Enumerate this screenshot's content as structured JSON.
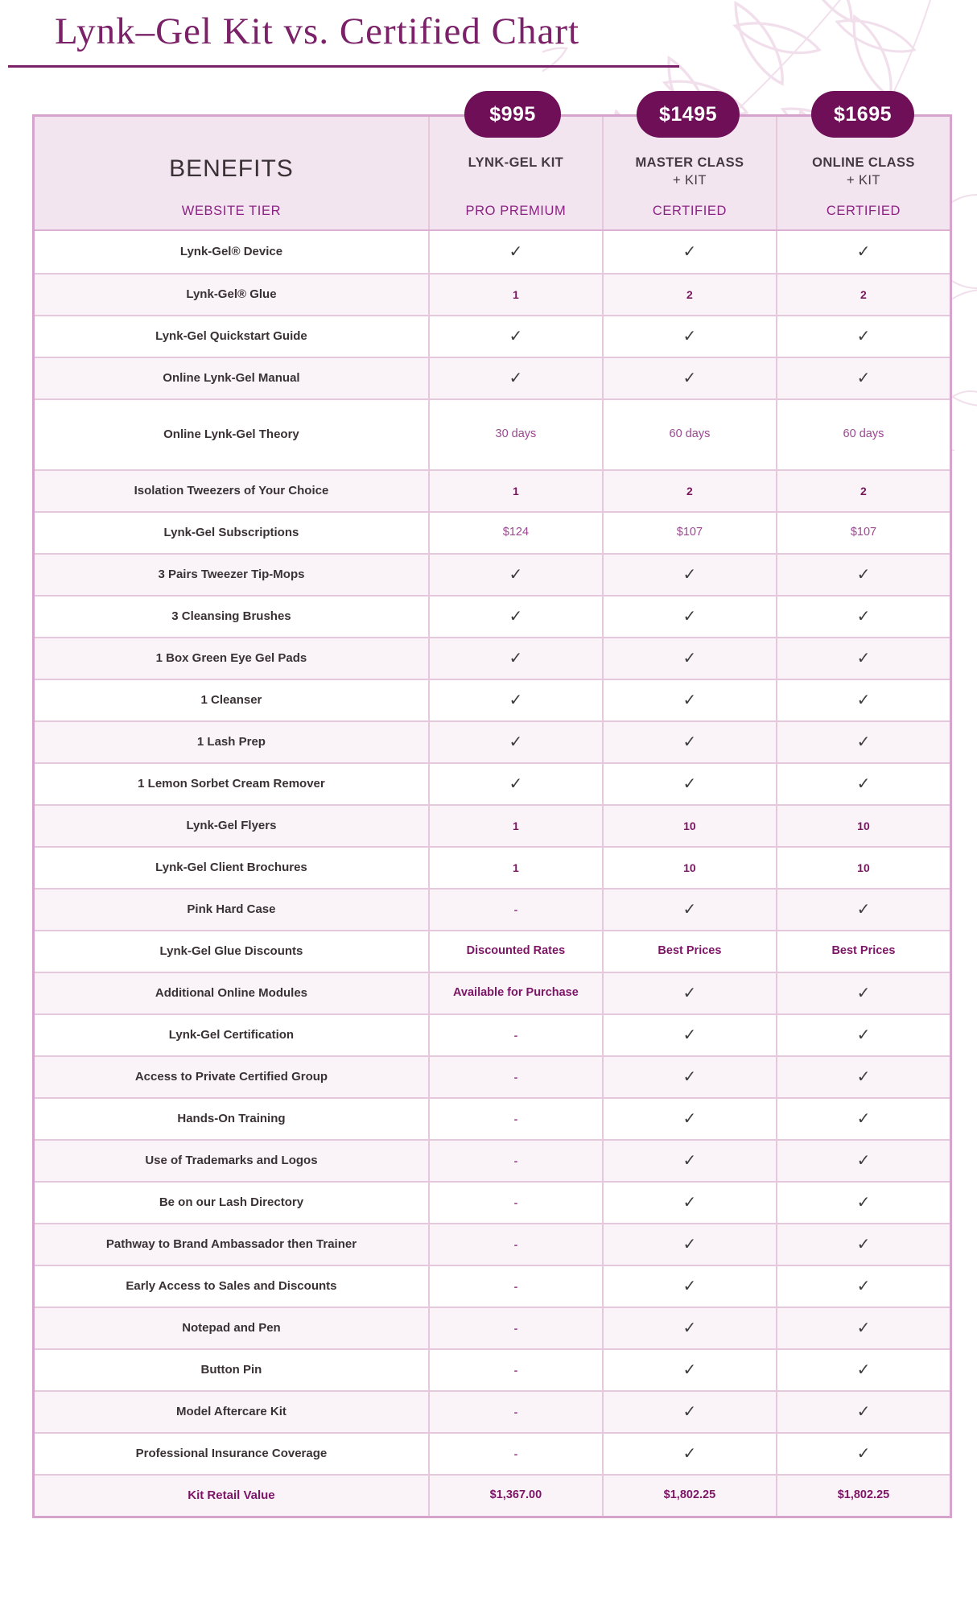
{
  "page": {
    "title": "Lynk–Gel Kit vs. Certified Chart"
  },
  "colors": {
    "title": "#7a2168",
    "badge": "#6e0f58",
    "headerBg": "#f3e5f0",
    "rowAlt": "#faf4f9",
    "borderOuter": "#d5a3cc",
    "borderInner": "#e6c8de",
    "dark": "#3a3134",
    "accent": "#7c1566",
    "accentSoft": "#9a4890",
    "countPurple": "#77175f",
    "leaf": "#f1dfec"
  },
  "icons": {
    "check": "✓",
    "dash": "-",
    "leaf_decoration": "line-art leaves, top right"
  },
  "chart_data": {
    "type": "table",
    "title": "Lynk–Gel Kit vs. Certified Chart",
    "columns": [
      {
        "header": "BENEFITS",
        "header2": "",
        "subheader": "WEBSITE TIER",
        "price": ""
      },
      {
        "header": "LYNK-GEL KIT",
        "header2": "",
        "subheader": "PRO PREMIUM",
        "price": "$995"
      },
      {
        "header": "MASTER CLASS",
        "header2": "+ KIT",
        "subheader": "CERTIFIED",
        "price": "$1495"
      },
      {
        "header": "ONLINE CLASS",
        "header2": "+ KIT",
        "subheader": "CERTIFIED",
        "price": "$1695"
      }
    ],
    "rows": [
      {
        "label": "Lynk-Gel® Device",
        "values": [
          "✓",
          "✓",
          "✓"
        ],
        "styles": [
          "check",
          "check",
          "check"
        ]
      },
      {
        "label": "Lynk-Gel® Glue",
        "values": [
          "1",
          "2",
          "2"
        ],
        "styles": [
          "count",
          "count",
          "count"
        ]
      },
      {
        "label": "Lynk-Gel Quickstart Guide",
        "values": [
          "✓",
          "✓",
          "✓"
        ],
        "styles": [
          "check",
          "check",
          "check"
        ]
      },
      {
        "label": "Online Lynk-Gel Manual",
        "values": [
          "✓",
          "✓",
          "✓"
        ],
        "styles": [
          "check",
          "check",
          "check"
        ]
      },
      {
        "label": "Online Lynk-Gel Theory",
        "values": [
          "30 days",
          "60 days",
          "60 days"
        ],
        "styles": [
          "text",
          "text",
          "text"
        ],
        "tall": true
      },
      {
        "label": "Isolation Tweezers of Your Choice",
        "values": [
          "1",
          "2",
          "2"
        ],
        "styles": [
          "count",
          "count",
          "count"
        ]
      },
      {
        "label": "Lynk-Gel Subscriptions",
        "values": [
          "$124",
          "$107",
          "$107"
        ],
        "styles": [
          "text",
          "text",
          "text"
        ]
      },
      {
        "label": "3 Pairs Tweezer Tip-Mops",
        "values": [
          "✓",
          "✓",
          "✓"
        ],
        "styles": [
          "check",
          "check",
          "check"
        ]
      },
      {
        "label": "3 Cleansing Brushes",
        "values": [
          "✓",
          "✓",
          "✓"
        ],
        "styles": [
          "check",
          "check",
          "check"
        ]
      },
      {
        "label": "1 Box Green Eye Gel Pads",
        "values": [
          "✓",
          "✓",
          "✓"
        ],
        "styles": [
          "check",
          "check",
          "check"
        ]
      },
      {
        "label": "1 Cleanser",
        "values": [
          "✓",
          "✓",
          "✓"
        ],
        "styles": [
          "check",
          "check",
          "check"
        ]
      },
      {
        "label": "1 Lash Prep",
        "values": [
          "✓",
          "✓",
          "✓"
        ],
        "styles": [
          "check",
          "check",
          "check"
        ]
      },
      {
        "label": "1 Lemon Sorbet Cream Remover",
        "values": [
          "✓",
          "✓",
          "✓"
        ],
        "styles": [
          "check",
          "check",
          "check"
        ]
      },
      {
        "label": "Lynk-Gel Flyers",
        "values": [
          "1",
          "10",
          "10"
        ],
        "styles": [
          "count",
          "count",
          "count"
        ]
      },
      {
        "label": "Lynk-Gel Client Brochures",
        "values": [
          "1",
          "10",
          "10"
        ],
        "styles": [
          "count",
          "count",
          "count"
        ]
      },
      {
        "label": "Pink Hard Case",
        "values": [
          "-",
          "✓",
          "✓"
        ],
        "styles": [
          "dash",
          "check",
          "check"
        ]
      },
      {
        "label": "Lynk-Gel Glue Discounts",
        "values": [
          "Discounted Rates",
          "Best Prices",
          "Best Prices"
        ],
        "styles": [
          "bold",
          "bold",
          "bold"
        ]
      },
      {
        "label": "Additional Online Modules",
        "values": [
          "Available for Purchase",
          "✓",
          "✓"
        ],
        "styles": [
          "bold",
          "check",
          "check"
        ]
      },
      {
        "label": "Lynk-Gel Certification",
        "values": [
          "-",
          "✓",
          "✓"
        ],
        "styles": [
          "dash",
          "check",
          "check"
        ]
      },
      {
        "label": "Access to Private Certified Group",
        "values": [
          "-",
          "✓",
          "✓"
        ],
        "styles": [
          "dash",
          "check",
          "check"
        ]
      },
      {
        "label": "Hands-On Training",
        "values": [
          "-",
          "✓",
          "✓"
        ],
        "styles": [
          "dash",
          "check",
          "check"
        ]
      },
      {
        "label": "Use of Trademarks and Logos",
        "values": [
          "-",
          "✓",
          "✓"
        ],
        "styles": [
          "dash",
          "check",
          "check"
        ]
      },
      {
        "label": "Be on our Lash Directory",
        "values": [
          "-",
          "✓",
          "✓"
        ],
        "styles": [
          "dash",
          "check",
          "check"
        ]
      },
      {
        "label": "Pathway to Brand Ambassador then Trainer",
        "values": [
          "-",
          "✓",
          "✓"
        ],
        "styles": [
          "dash",
          "check",
          "check"
        ]
      },
      {
        "label": "Early Access to Sales and Discounts",
        "values": [
          "-",
          "✓",
          "✓"
        ],
        "styles": [
          "dash",
          "check",
          "check"
        ]
      },
      {
        "label": "Notepad and Pen",
        "values": [
          "-",
          "✓",
          "✓"
        ],
        "styles": [
          "dash",
          "check",
          "check"
        ]
      },
      {
        "label": "Button Pin",
        "values": [
          "-",
          "✓",
          "✓"
        ],
        "styles": [
          "dash",
          "check",
          "check"
        ]
      },
      {
        "label": "Model Aftercare Kit",
        "values": [
          "-",
          "✓",
          "✓"
        ],
        "styles": [
          "dash",
          "check",
          "check"
        ]
      },
      {
        "label": "Professional Insurance Coverage",
        "values": [
          "-",
          "✓",
          "✓"
        ],
        "styles": [
          "dash",
          "check",
          "check"
        ]
      },
      {
        "label": "Kit Retail Value",
        "values": [
          "$1,367.00",
          "$1,802.25",
          "$1,802.25"
        ],
        "styles": [
          "bold",
          "bold",
          "bold"
        ],
        "label_style": "accent"
      }
    ]
  }
}
